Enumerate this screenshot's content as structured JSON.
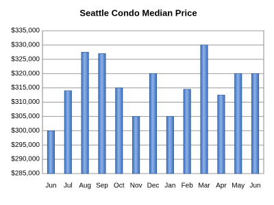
{
  "chart_data": {
    "type": "bar",
    "title": "Seattle Condo Median Price",
    "categories": [
      "Jun",
      "Jul",
      "Aug",
      "Sep",
      "Oct",
      "Nov",
      "Dec",
      "Jan",
      "Feb",
      "Mar",
      "Apr",
      "May",
      "Jun"
    ],
    "values": [
      300000,
      314000,
      327500,
      327000,
      315000,
      305000,
      320000,
      305000,
      314500,
      330000,
      312500,
      320000,
      320000
    ],
    "color": "#3a6fbf",
    "ylim": [
      285000,
      335000
    ],
    "yticks": [
      {
        "value": 285000,
        "label": "$285,000"
      },
      {
        "value": 290000,
        "label": "$290,000"
      },
      {
        "value": 295000,
        "label": "$295,000"
      },
      {
        "value": 300000,
        "label": "$300,000"
      },
      {
        "value": 305000,
        "label": "$305,000"
      },
      {
        "value": 310000,
        "label": "$310,000"
      },
      {
        "value": 315000,
        "label": "$315,000"
      },
      {
        "value": 320000,
        "label": "$320,000"
      },
      {
        "value": 325000,
        "label": "$325,000"
      },
      {
        "value": 330000,
        "label": "$330,000"
      },
      {
        "value": 335000,
        "label": "$335,000"
      }
    ],
    "grid": true
  }
}
